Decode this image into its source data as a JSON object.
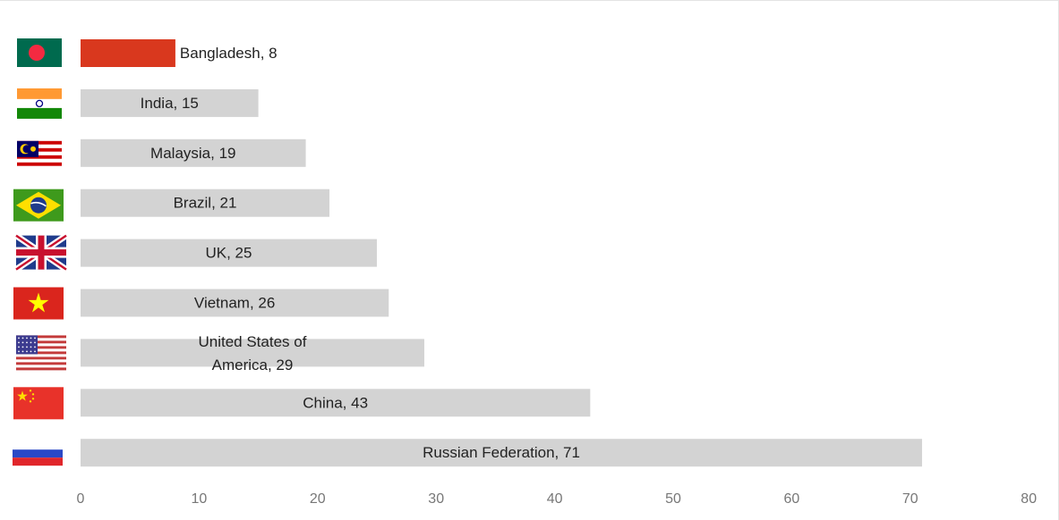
{
  "chart_data": {
    "type": "bar",
    "orientation": "horizontal",
    "title": "",
    "xlabel": "",
    "ylabel": "",
    "xlim": [
      0,
      80
    ],
    "xticks": [
      0,
      10,
      20,
      30,
      40,
      50,
      60,
      70,
      80
    ],
    "grid": false,
    "legend": "none",
    "highlight_color": "#d9381e",
    "bar_color": "#d3d3d3",
    "bars": [
      {
        "category": "Bangladesh",
        "value": 8,
        "label": "Bangladesh, 8",
        "flag_icon": "bangladesh-flag-icon",
        "highlight": true
      },
      {
        "category": "India",
        "value": 15,
        "label": "India, 15",
        "flag_icon": "india-flag-icon",
        "highlight": false
      },
      {
        "category": "Malaysia",
        "value": 19,
        "label": "Malaysia, 19",
        "flag_icon": "malaysia-flag-icon",
        "highlight": false
      },
      {
        "category": "Brazil",
        "value": 21,
        "label": "Brazil, 21",
        "flag_icon": "brazil-flag-icon",
        "highlight": false
      },
      {
        "category": "UK",
        "value": 25,
        "label": "UK, 25",
        "flag_icon": "uk-flag-icon",
        "highlight": false
      },
      {
        "category": "Vietnam",
        "value": 26,
        "label": "Vietnam, 26",
        "flag_icon": "vietnam-flag-icon",
        "highlight": false
      },
      {
        "category": "United States of America",
        "value": 29,
        "label": "United States of America, 29",
        "label_lines": [
          "United States of",
          "America, 29"
        ],
        "flag_icon": "usa-flag-icon",
        "highlight": false
      },
      {
        "category": "China",
        "value": 43,
        "label": "China, 43",
        "flag_icon": "china-flag-icon",
        "highlight": false
      },
      {
        "category": "Russian Federation",
        "value": 71,
        "label": "Russian Federation, 71",
        "flag_icon": "russia-flag-icon",
        "highlight": false
      }
    ]
  }
}
